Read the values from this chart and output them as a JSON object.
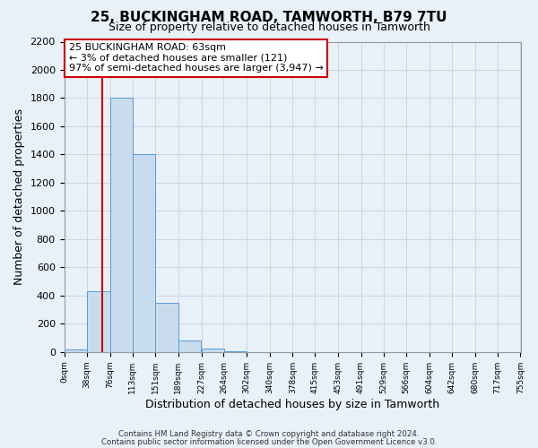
{
  "title": "25, BUCKINGHAM ROAD, TAMWORTH, B79 7TU",
  "subtitle": "Size of property relative to detached houses in Tamworth",
  "xlabel": "Distribution of detached houses by size in Tamworth",
  "ylabel": "Number of detached properties",
  "bar_left_edges": [
    0,
    38,
    76,
    113,
    151,
    189,
    227,
    264,
    302,
    340,
    378,
    415,
    453,
    491,
    529,
    566,
    604,
    642,
    680,
    717
  ],
  "bar_heights": [
    20,
    430,
    1800,
    1400,
    350,
    80,
    25,
    5,
    0,
    0,
    0,
    0,
    0,
    0,
    0,
    0,
    0,
    0,
    0,
    0
  ],
  "bin_width": 38,
  "bar_color": "#c8dcee",
  "bar_edge_color": "#5b9bd5",
  "property_line_x": 63,
  "property_line_color": "#cc0000",
  "annotation_line1": "25 BUCKINGHAM ROAD: 63sqm",
  "annotation_line2": "← 3% of detached houses are smaller (121)",
  "annotation_line3": "97% of semi-detached houses are larger (3,947) →",
  "annotation_box_color": "#ffffff",
  "annotation_box_edge_color": "#cc0000",
  "ylim": [
    0,
    2200
  ],
  "xlim": [
    0,
    755
  ],
  "yticks": [
    0,
    200,
    400,
    600,
    800,
    1000,
    1200,
    1400,
    1600,
    1800,
    2000,
    2200
  ],
  "tick_labels": [
    "0sqm",
    "38sqm",
    "76sqm",
    "113sqm",
    "151sqm",
    "189sqm",
    "227sqm",
    "264sqm",
    "302sqm",
    "340sqm",
    "378sqm",
    "415sqm",
    "453sqm",
    "491sqm",
    "529sqm",
    "566sqm",
    "604sqm",
    "642sqm",
    "680sqm",
    "717sqm",
    "755sqm"
  ],
  "tick_positions": [
    0,
    38,
    76,
    113,
    151,
    189,
    227,
    264,
    302,
    340,
    378,
    415,
    453,
    491,
    529,
    566,
    604,
    642,
    680,
    717,
    755
  ],
  "footer_line1": "Contains HM Land Registry data © Crown copyright and database right 2024.",
  "footer_line2": "Contains public sector information licensed under the Open Government Licence v3.0.",
  "grid_color": "#c8d8e8",
  "background_color": "#e8f0f8",
  "title_fontsize": 11,
  "subtitle_fontsize": 9
}
